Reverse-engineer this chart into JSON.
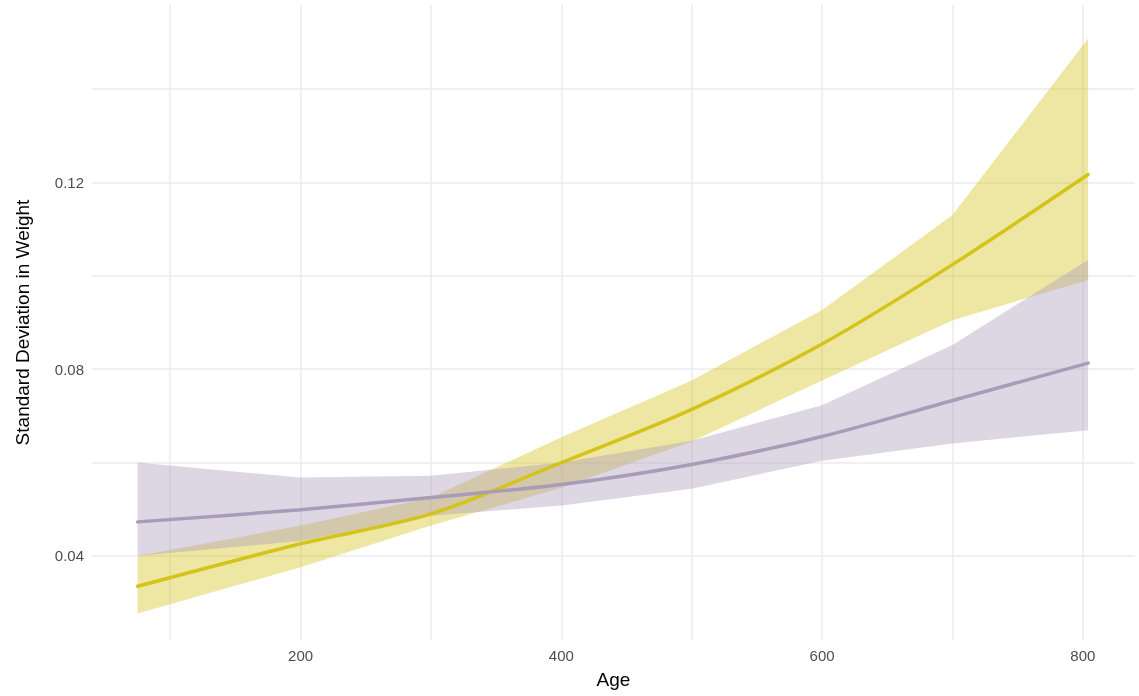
{
  "chart_data": {
    "type": "line",
    "xlabel": "Age",
    "ylabel": "Standard Deviation in Weight",
    "x": [
      75,
      200,
      300,
      400,
      500,
      600,
      700,
      804
    ],
    "series": [
      {
        "color": "#d4c319",
        "values": [
          0.0335,
          0.0426,
          0.049,
          0.06,
          0.0714,
          0.0854,
          0.1024,
          0.1217
        ],
        "lower": [
          0.0277,
          0.0376,
          0.0465,
          0.0546,
          0.0645,
          0.0776,
          0.0905,
          0.0991
        ],
        "upper": [
          0.04,
          0.0465,
          0.0525,
          0.0654,
          0.0776,
          0.0927,
          0.113,
          0.1508
        ]
      },
      {
        "color": "#a99cb8",
        "values": [
          0.0473,
          0.0499,
          0.0525,
          0.0553,
          0.0596,
          0.0656,
          0.0733,
          0.0813
        ],
        "lower": [
          0.04,
          0.0432,
          0.0486,
          0.0508,
          0.0544,
          0.0604,
          0.0641,
          0.0669
        ],
        "upper": [
          0.06,
          0.0568,
          0.0572,
          0.06,
          0.0647,
          0.0723,
          0.0852,
          0.1034
        ]
      }
    ],
    "xlim": [
      40,
      840
    ],
    "ylim": [
      0.022,
      0.158
    ],
    "xticks": [
      {
        "value": 100,
        "label": null
      },
      200,
      {
        "value": 300,
        "label": null
      },
      400,
      {
        "value": 500,
        "label": null
      },
      600,
      {
        "value": 700,
        "label": null
      },
      800
    ],
    "yticks": [
      0.04,
      {
        "value": 0.06,
        "label": null
      },
      0.08,
      {
        "value": 0.1,
        "label": null
      },
      0.12,
      {
        "value": 0.14,
        "label": null
      }
    ],
    "grid": true,
    "marker": "none",
    "line_style": "solid"
  }
}
